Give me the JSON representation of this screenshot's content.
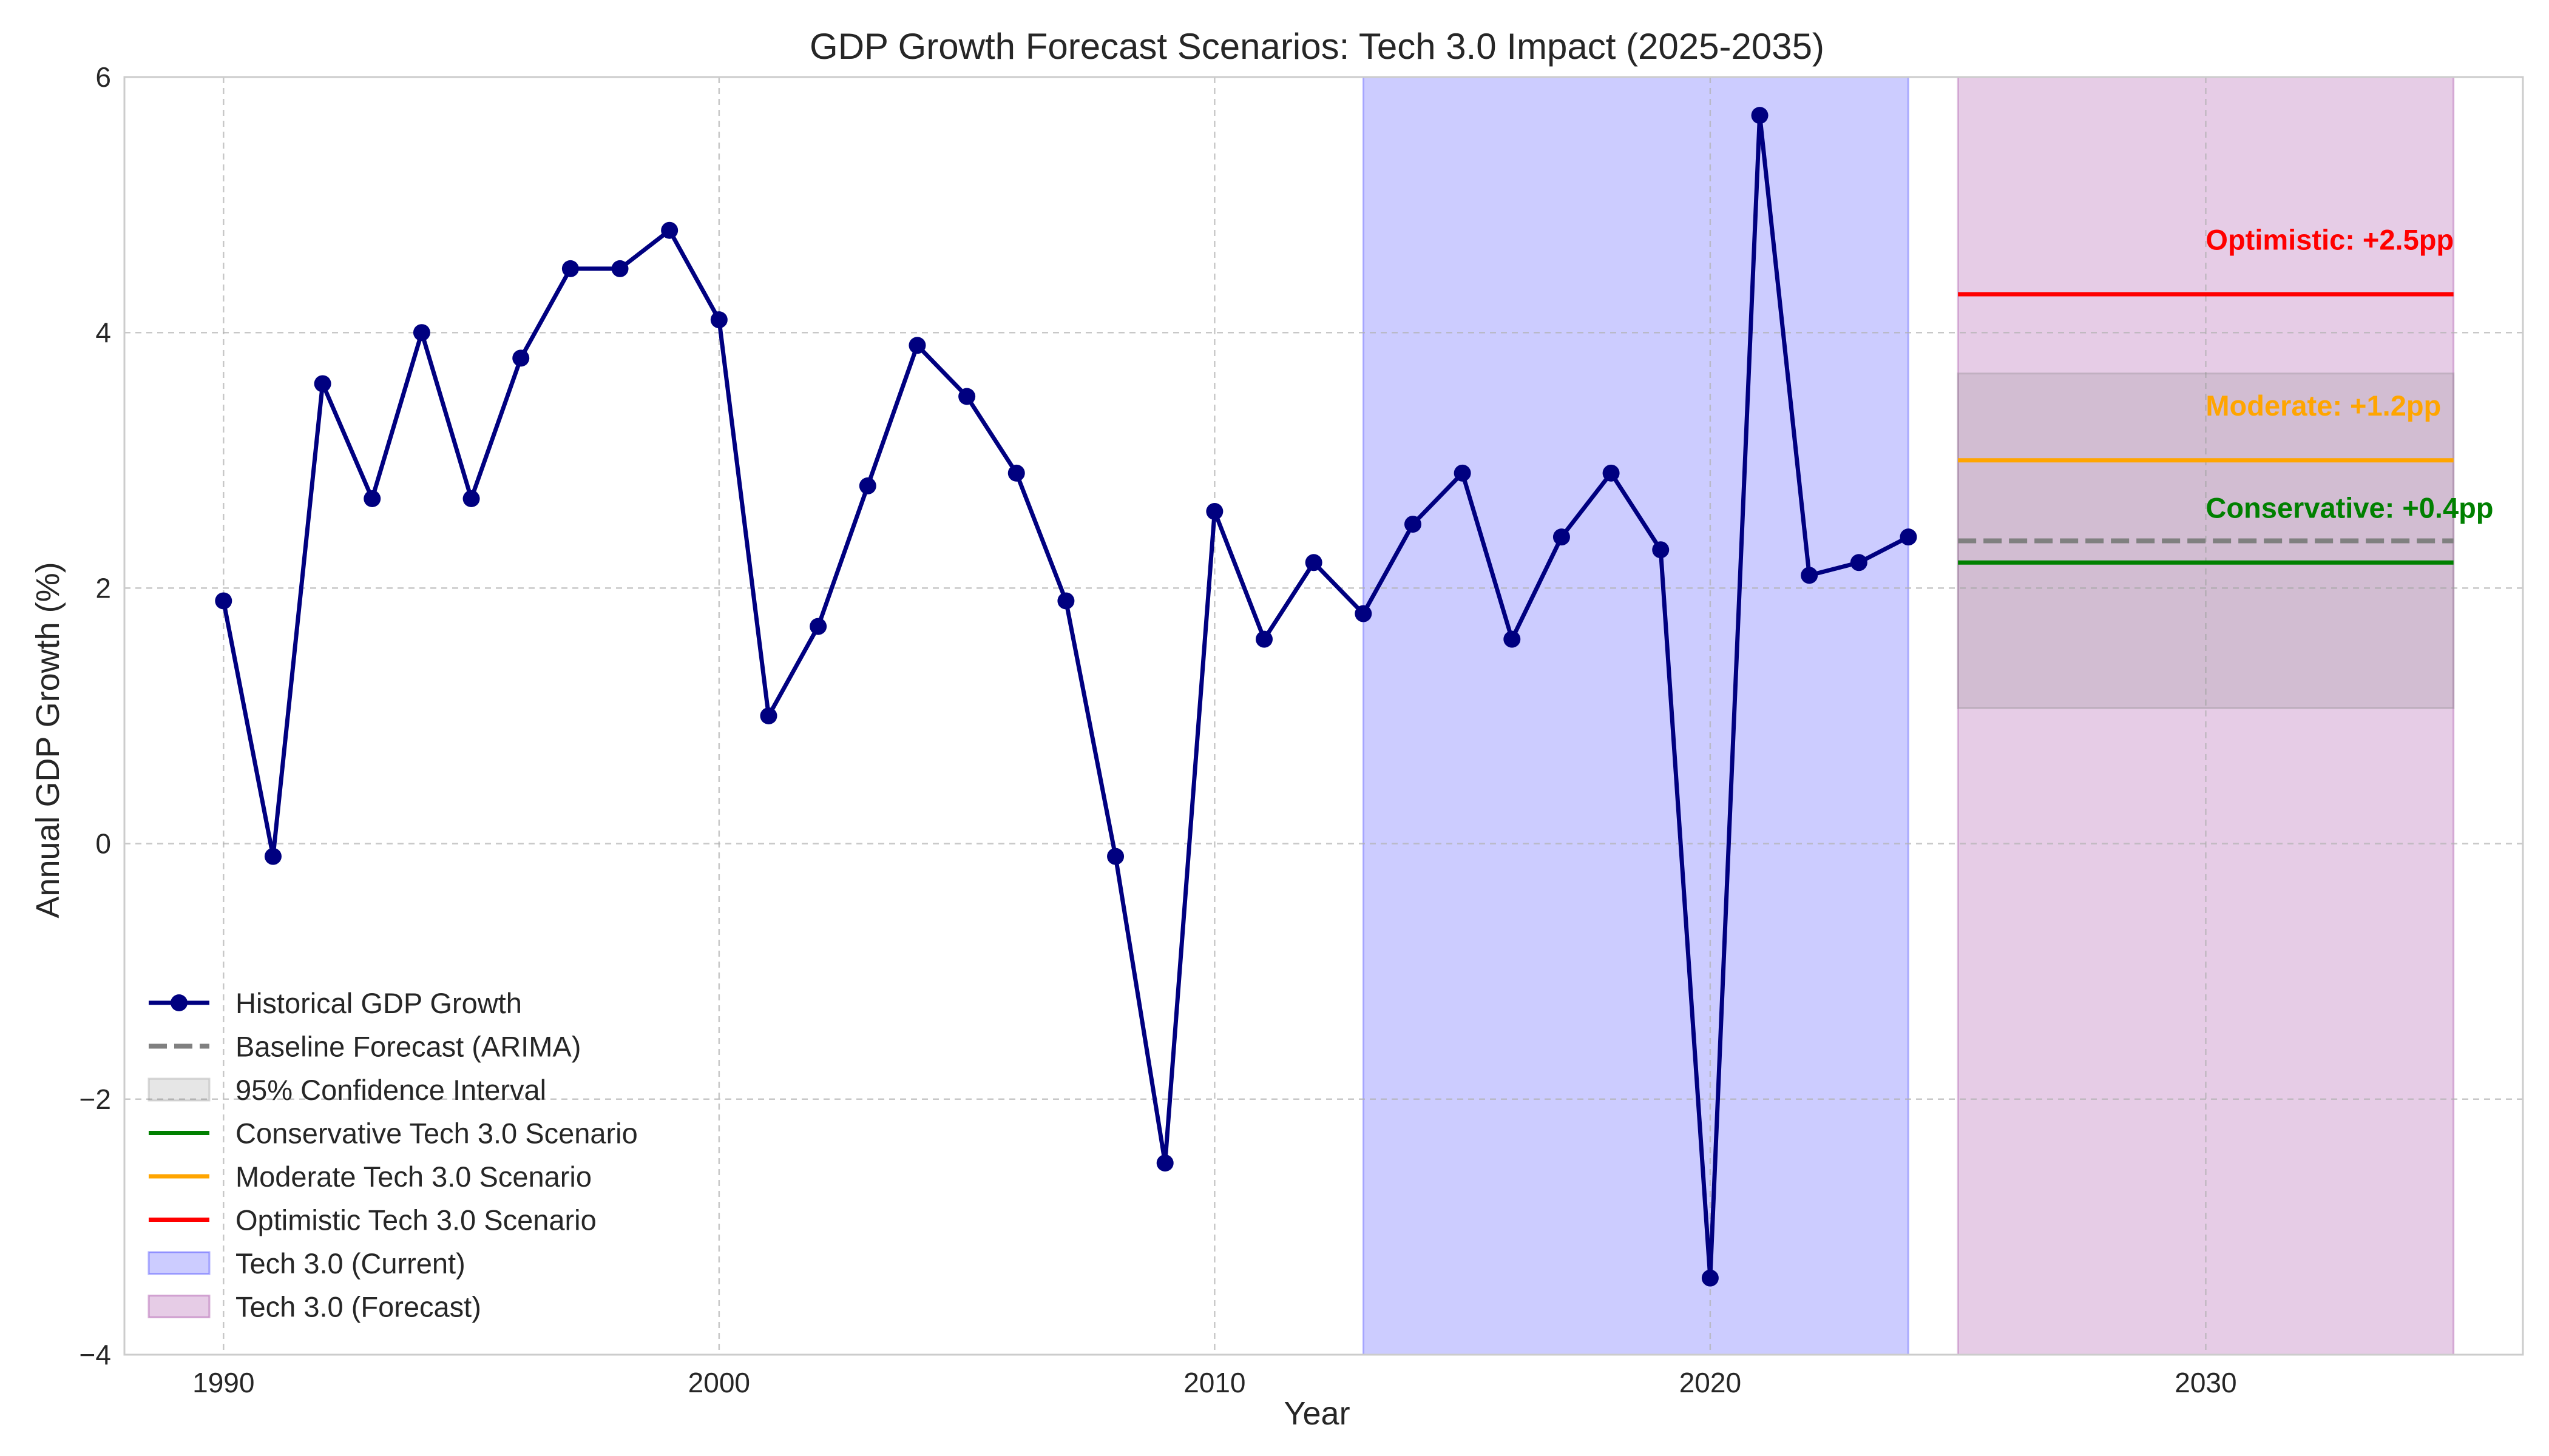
{
  "chart_data": {
    "type": "line",
    "title": "GDP Growth Forecast Scenarios: Tech 3.0 Impact (2025-2035)",
    "xlabel": "Year",
    "ylabel": "Annual GDP Growth (%)",
    "xlim": [
      1988,
      2036.4
    ],
    "ylim": [
      -4,
      6
    ],
    "x_ticks": [
      1990,
      2000,
      2010,
      2020,
      2030
    ],
    "y_ticks": [
      -4,
      -2,
      0,
      2,
      4,
      6
    ],
    "y_tick_labels": [
      "−4",
      "−2",
      "0",
      "2",
      "4",
      "6"
    ],
    "grid": true,
    "legend_position": "lower-left",
    "historical": {
      "name": "Historical GDP Growth",
      "color": "#000080",
      "x": [
        1990,
        1991,
        1992,
        1993,
        1994,
        1995,
        1996,
        1997,
        1998,
        1999,
        2000,
        2001,
        2002,
        2003,
        2004,
        2005,
        2006,
        2007,
        2008,
        2009,
        2010,
        2011,
        2012,
        2013,
        2014,
        2015,
        2016,
        2017,
        2018,
        2019,
        2020,
        2021,
        2022,
        2023,
        2024
      ],
      "y": [
        1.9,
        -0.1,
        3.6,
        2.7,
        4.0,
        2.7,
        3.8,
        4.5,
        4.5,
        4.8,
        4.1,
        1.0,
        1.7,
        2.8,
        3.9,
        3.5,
        2.9,
        1.9,
        -0.1,
        -2.5,
        2.6,
        1.6,
        2.2,
        1.8,
        2.5,
        2.9,
        1.6,
        2.4,
        2.9,
        2.3,
        -3.4,
        5.7,
        2.1,
        2.2,
        2.4
      ]
    },
    "baseline": {
      "name": "Baseline Forecast (ARIMA)",
      "color": "#808080",
      "x": [
        2025,
        2035
      ],
      "y": 2.37
    },
    "confidence_interval": {
      "name": "95% Confidence Interval",
      "x": [
        2025,
        2035
      ],
      "lower": 1.06,
      "upper": 3.68
    },
    "scenarios": [
      {
        "name": "Conservative Tech 3.0 Scenario",
        "color": "#008000",
        "x": [
          2025,
          2035
        ],
        "y": 2.2,
        "annotation": "Conservative: +0.4pp",
        "annotation_y": 2.55
      },
      {
        "name": "Moderate Tech 3.0 Scenario",
        "color": "#FFA500",
        "x": [
          2025,
          2035
        ],
        "y": 3.0,
        "annotation": "Moderate: +1.2pp",
        "annotation_y": 3.35
      },
      {
        "name": "Optimistic Tech 3.0 Scenario",
        "color": "#FF0000",
        "x": [
          2025,
          2035
        ],
        "y": 4.3,
        "annotation": "Optimistic: +2.5pp",
        "annotation_y": 4.65
      }
    ],
    "annotation_x": 2030,
    "spans": [
      {
        "name": "Tech 3.0 (Current)",
        "x": [
          2013,
          2024
        ],
        "color": "#0000ff",
        "opacity": 0.2
      },
      {
        "name": "Tech 3.0 (Forecast)",
        "x": [
          2025,
          2035
        ],
        "color": "#800080",
        "opacity": 0.2
      }
    ],
    "legend": [
      "Historical GDP Growth",
      "Baseline Forecast (ARIMA)",
      "95% Confidence Interval",
      "Conservative Tech 3.0 Scenario",
      "Moderate Tech 3.0 Scenario",
      "Optimistic Tech 3.0 Scenario",
      "Tech 3.0 (Current)",
      "Tech 3.0 (Forecast)"
    ]
  }
}
